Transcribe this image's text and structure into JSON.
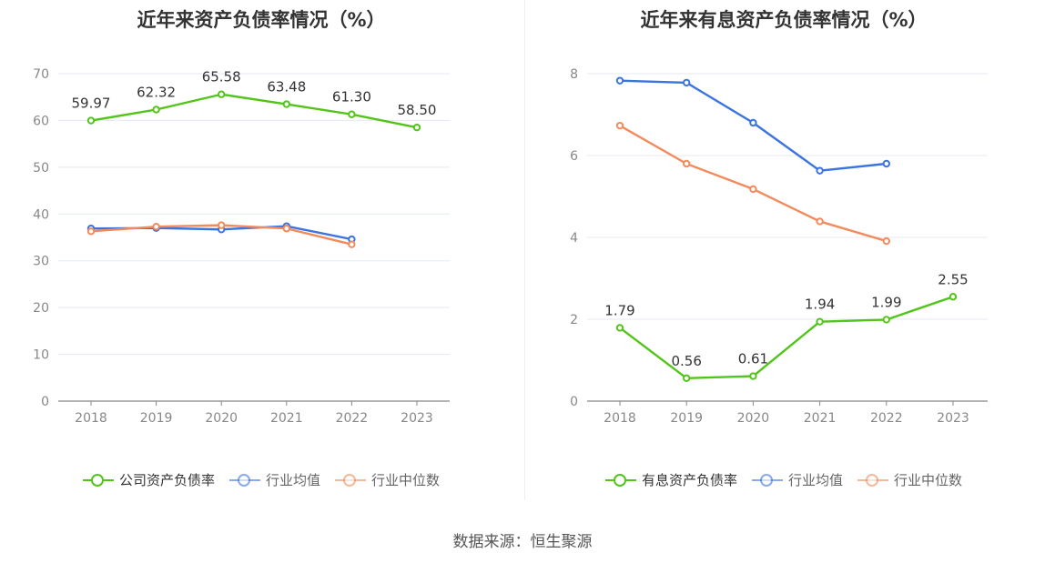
{
  "source": "数据来源：恒生聚源",
  "chart_data": [
    {
      "type": "line",
      "title": "近年来资产负债率情况（%）",
      "categories": [
        "2018",
        "2019",
        "2020",
        "2021",
        "2022",
        "2023"
      ],
      "ylim": [
        0,
        70
      ],
      "yticks": [
        0,
        10,
        20,
        30,
        40,
        50,
        60,
        70
      ],
      "grid": true,
      "legend_position": "bottom",
      "series": [
        {
          "name": "公司资产负债率",
          "color": "#52c41a",
          "values": [
            59.97,
            62.32,
            65.58,
            63.48,
            61.3,
            58.5
          ],
          "labels": [
            "59.97",
            "62.32",
            "65.58",
            "63.48",
            "61.30",
            "58.50"
          ]
        },
        {
          "name": "行业均值",
          "color": "#3b73e0",
          "values": [
            36.9,
            37.0,
            36.7,
            37.4,
            34.6,
            null
          ]
        },
        {
          "name": "行业中位数",
          "color": "#f28a5c",
          "values": [
            36.3,
            37.3,
            37.6,
            36.9,
            33.5,
            null
          ]
        }
      ]
    },
    {
      "type": "line",
      "title": "近年来有息资产负债率情况（%）",
      "categories": [
        "2018",
        "2019",
        "2020",
        "2021",
        "2022",
        "2023"
      ],
      "ylim": [
        0,
        8
      ],
      "yticks": [
        0,
        2,
        4,
        6,
        8
      ],
      "grid": true,
      "legend_position": "bottom",
      "series": [
        {
          "name": "有息资产负债率",
          "color": "#52c41a",
          "values": [
            1.79,
            0.56,
            0.61,
            1.94,
            1.99,
            2.55
          ],
          "labels": [
            "1.79",
            "0.56",
            "0.61",
            "1.94",
            "1.99",
            "2.55"
          ]
        },
        {
          "name": "行业均值",
          "color": "#3b73e0",
          "values": [
            7.83,
            7.78,
            6.8,
            5.63,
            5.8,
            null
          ]
        },
        {
          "name": "行业中位数",
          "color": "#f28a5c",
          "values": [
            6.73,
            5.8,
            5.18,
            4.39,
            3.91,
            null
          ]
        }
      ]
    }
  ]
}
